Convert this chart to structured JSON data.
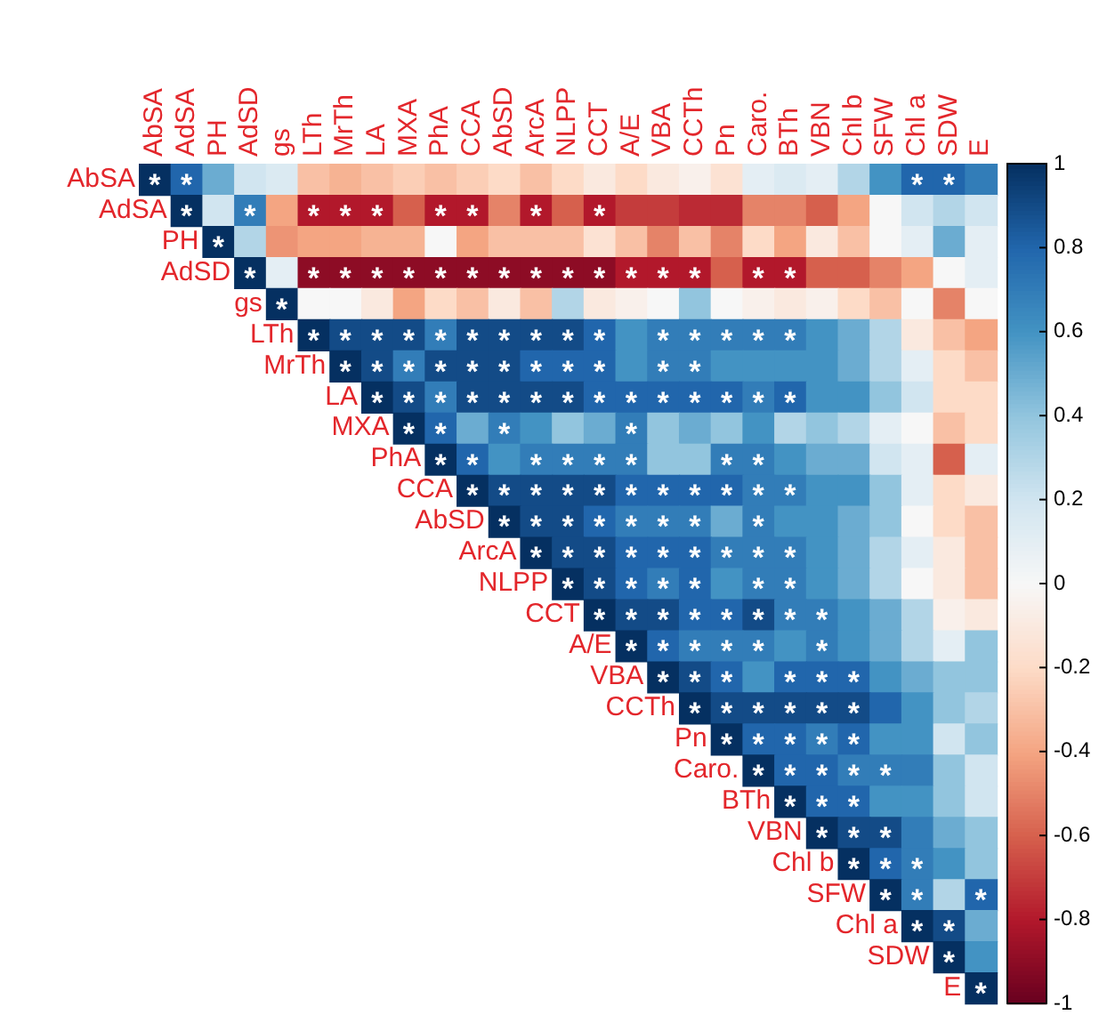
{
  "chart_data": {
    "type": "heatmap",
    "categories": [
      "AbSA",
      "AdSA",
      "PH",
      "AdSD",
      "gs",
      "LTh",
      "MrTh",
      "LA",
      "MXA",
      "PhA",
      "CCA",
      "AbSD",
      "ArcA",
      "NLPP",
      "CCT",
      "A/E",
      "VBA",
      "CCTh",
      "Pn",
      "Caro.",
      "BTh",
      "VBN",
      "Chl b",
      "SFW",
      "Chl a",
      "SDW",
      "E"
    ],
    "y_categories": [
      "AbSA",
      "AdSA",
      "PH",
      "AdSD",
      "gs",
      "LTh",
      "MrTh",
      "LA",
      "MXA",
      "PhA",
      "CCA",
      "AbSD",
      "ArcA",
      "NLPP",
      "CCT",
      "A/E",
      "VBA",
      "CCTh",
      "Pn",
      "Caro.",
      "BTh",
      "VBN",
      "Chl b",
      "SFW",
      "Chl a",
      "SDW",
      "E"
    ],
    "cells": [
      [
        1,
        0.8,
        0.5,
        0.2,
        0.15,
        -0.3,
        -0.35,
        -0.3,
        -0.25,
        -0.3,
        -0.25,
        -0.2,
        -0.3,
        -0.2,
        -0.1,
        -0.2,
        -0.1,
        -0.05,
        -0.15,
        0.1,
        0.15,
        0.1,
        0.3,
        0.6,
        0.8,
        0.8,
        0.7
      ],
      [
        null,
        1,
        0.2,
        0.7,
        -0.4,
        -0.8,
        -0.8,
        -0.8,
        -0.6,
        -0.8,
        -0.8,
        -0.5,
        -0.8,
        -0.6,
        -0.8,
        -0.7,
        -0.7,
        -0.75,
        -0.75,
        -0.5,
        -0.5,
        -0.6,
        -0.4,
        0,
        0.2,
        0.3,
        0.2
      ],
      [
        null,
        null,
        1,
        0.3,
        -0.45,
        -0.4,
        -0.4,
        -0.35,
        -0.35,
        0,
        -0.4,
        -0.3,
        -0.3,
        -0.3,
        -0.15,
        -0.3,
        -0.5,
        -0.3,
        -0.5,
        -0.2,
        -0.4,
        -0.1,
        -0.3,
        0,
        0.1,
        0.5,
        0.1
      ],
      [
        null,
        null,
        null,
        1,
        0.1,
        -0.9,
        -0.9,
        -0.9,
        -0.9,
        -0.9,
        -0.9,
        -0.9,
        -0.9,
        -0.9,
        -0.9,
        -0.8,
        -0.8,
        -0.8,
        -0.6,
        -0.8,
        -0.8,
        -0.6,
        -0.6,
        -0.5,
        -0.4,
        0,
        0.1
      ],
      [
        null,
        null,
        null,
        null,
        1,
        0,
        0,
        -0.1,
        -0.4,
        -0.2,
        -0.3,
        -0.1,
        -0.3,
        0.3,
        -0.1,
        -0.05,
        0,
        0.4,
        0,
        -0.05,
        -0.1,
        -0.05,
        -0.2,
        -0.3,
        0,
        -0.5,
        0
      ],
      [
        null,
        null,
        null,
        null,
        null,
        1,
        0.9,
        0.9,
        0.9,
        0.7,
        0.9,
        0.9,
        0.9,
        0.9,
        0.8,
        0.6,
        0.7,
        0.7,
        0.7,
        0.7,
        0.7,
        0.6,
        0.5,
        0.3,
        -0.1,
        -0.3,
        -0.4
      ],
      [
        null,
        null,
        null,
        null,
        null,
        null,
        1,
        0.9,
        0.7,
        0.9,
        0.9,
        0.9,
        0.8,
        0.8,
        0.8,
        0.6,
        0.7,
        0.7,
        0.6,
        0.6,
        0.6,
        0.6,
        0.5,
        0.3,
        0.1,
        -0.2,
        -0.3
      ],
      [
        null,
        null,
        null,
        null,
        null,
        null,
        null,
        1,
        0.9,
        0.7,
        0.9,
        0.9,
        0.9,
        0.9,
        0.8,
        0.8,
        0.8,
        0.8,
        0.8,
        0.7,
        0.8,
        0.6,
        0.6,
        0.4,
        0.2,
        -0.2,
        -0.2
      ],
      [
        null,
        null,
        null,
        null,
        null,
        null,
        null,
        null,
        1,
        0.8,
        0.5,
        0.7,
        0.6,
        0.4,
        0.5,
        0.7,
        0.4,
        0.5,
        0.4,
        0.6,
        0.3,
        0.4,
        0.3,
        0.1,
        0,
        -0.3,
        -0.2
      ],
      [
        null,
        null,
        null,
        null,
        null,
        null,
        null,
        null,
        null,
        1,
        0.8,
        0.6,
        0.7,
        0.7,
        0.7,
        0.7,
        0.4,
        0.4,
        0.7,
        0.7,
        0.6,
        0.5,
        0.5,
        0.2,
        0.1,
        -0.6,
        0.1
      ],
      [
        null,
        null,
        null,
        null,
        null,
        null,
        null,
        null,
        null,
        null,
        1,
        0.9,
        0.9,
        0.9,
        0.9,
        0.8,
        0.8,
        0.8,
        0.8,
        0.7,
        0.7,
        0.6,
        0.6,
        0.4,
        0.1,
        -0.2,
        -0.1
      ],
      [
        null,
        null,
        null,
        null,
        null,
        null,
        null,
        null,
        null,
        null,
        null,
        1,
        0.9,
        0.9,
        0.8,
        0.7,
        0.7,
        0.7,
        0.5,
        0.7,
        0.6,
        0.6,
        0.5,
        0.4,
        0,
        -0.2,
        -0.3
      ],
      [
        null,
        null,
        null,
        null,
        null,
        null,
        null,
        null,
        null,
        null,
        null,
        null,
        1,
        0.9,
        0.9,
        0.8,
        0.8,
        0.8,
        0.7,
        0.7,
        0.7,
        0.6,
        0.5,
        0.3,
        0.1,
        -0.1,
        -0.3
      ],
      [
        null,
        null,
        null,
        null,
        null,
        null,
        null,
        null,
        null,
        null,
        null,
        null,
        null,
        1,
        0.9,
        0.8,
        0.7,
        0.8,
        0.6,
        0.7,
        0.7,
        0.6,
        0.5,
        0.3,
        0,
        -0.1,
        -0.3
      ],
      [
        null,
        null,
        null,
        null,
        null,
        null,
        null,
        null,
        null,
        null,
        null,
        null,
        null,
        null,
        1,
        0.9,
        0.9,
        0.8,
        0.8,
        0.9,
        0.7,
        0.7,
        0.6,
        0.5,
        0.3,
        -0.05,
        -0.1
      ],
      [
        null,
        null,
        null,
        null,
        null,
        null,
        null,
        null,
        null,
        null,
        null,
        null,
        null,
        null,
        null,
        1,
        0.8,
        0.7,
        0.7,
        0.7,
        0.6,
        0.7,
        0.6,
        0.5,
        0.3,
        0.1,
        0.4
      ],
      [
        null,
        null,
        null,
        null,
        null,
        null,
        null,
        null,
        null,
        null,
        null,
        null,
        null,
        null,
        null,
        null,
        1,
        0.9,
        0.8,
        0.6,
        0.8,
        0.8,
        0.8,
        0.6,
        0.5,
        0.4,
        0.4
      ],
      [
        null,
        null,
        null,
        null,
        null,
        null,
        null,
        null,
        null,
        null,
        null,
        null,
        null,
        null,
        null,
        null,
        null,
        1,
        0.9,
        0.9,
        0.9,
        0.9,
        0.9,
        0.8,
        0.6,
        0.4,
        0.3
      ],
      [
        null,
        null,
        null,
        null,
        null,
        null,
        null,
        null,
        null,
        null,
        null,
        null,
        null,
        null,
        null,
        null,
        null,
        null,
        1,
        0.8,
        0.8,
        0.7,
        0.8,
        0.6,
        0.6,
        0.2,
        0.4
      ],
      [
        null,
        null,
        null,
        null,
        null,
        null,
        null,
        null,
        null,
        null,
        null,
        null,
        null,
        null,
        null,
        null,
        null,
        null,
        null,
        1,
        0.8,
        0.8,
        0.7,
        0.7,
        0.7,
        0.4,
        0.2
      ],
      [
        null,
        null,
        null,
        null,
        null,
        null,
        null,
        null,
        null,
        null,
        null,
        null,
        null,
        null,
        null,
        null,
        null,
        null,
        null,
        null,
        1,
        0.8,
        0.8,
        0.6,
        0.6,
        0.4,
        0.2
      ],
      [
        null,
        null,
        null,
        null,
        null,
        null,
        null,
        null,
        null,
        null,
        null,
        null,
        null,
        null,
        null,
        null,
        null,
        null,
        null,
        null,
        null,
        1,
        0.9,
        0.9,
        0.7,
        0.5,
        0.4
      ],
      [
        null,
        null,
        null,
        null,
        null,
        null,
        null,
        null,
        null,
        null,
        null,
        null,
        null,
        null,
        null,
        null,
        null,
        null,
        null,
        null,
        null,
        null,
        1,
        0.8,
        0.7,
        0.6,
        0.4
      ],
      [
        null,
        null,
        null,
        null,
        null,
        null,
        null,
        null,
        null,
        null,
        null,
        null,
        null,
        null,
        null,
        null,
        null,
        null,
        null,
        null,
        null,
        null,
        null,
        1,
        0.7,
        0.3,
        0.8
      ],
      [
        null,
        null,
        null,
        null,
        null,
        null,
        null,
        null,
        null,
        null,
        null,
        null,
        null,
        null,
        null,
        null,
        null,
        null,
        null,
        null,
        null,
        null,
        null,
        null,
        1,
        0.9,
        0.5
      ],
      [
        null,
        null,
        null,
        null,
        null,
        null,
        null,
        null,
        null,
        null,
        null,
        null,
        null,
        null,
        null,
        null,
        null,
        null,
        null,
        null,
        null,
        null,
        null,
        null,
        null,
        1,
        0.6
      ],
      [
        null,
        null,
        null,
        null,
        null,
        null,
        null,
        null,
        null,
        null,
        null,
        null,
        null,
        null,
        null,
        null,
        null,
        null,
        null,
        null,
        null,
        null,
        null,
        null,
        null,
        null,
        1
      ]
    ],
    "cell_labels": [
      [
        "*",
        "*",
        null,
        null,
        null,
        null,
        null,
        null,
        null,
        null,
        null,
        null,
        null,
        null,
        null,
        null,
        null,
        null,
        null,
        null,
        null,
        null,
        null,
        null,
        "*",
        "*",
        null
      ],
      [
        null,
        "*",
        null,
        "*",
        null,
        "*",
        "*",
        "*",
        null,
        "*",
        "*",
        null,
        "*",
        null,
        "*",
        null,
        null,
        null,
        null,
        null,
        null,
        null,
        null,
        null,
        null,
        null,
        null
      ],
      [
        null,
        null,
        "*",
        null,
        null,
        null,
        null,
        null,
        null,
        null,
        null,
        null,
        null,
        null,
        null,
        null,
        null,
        null,
        null,
        null,
        null,
        null,
        null,
        null,
        null,
        null,
        null
      ],
      [
        null,
        null,
        null,
        "*",
        null,
        "*",
        "*",
        "*",
        "*",
        "*",
        "*",
        "*",
        "*",
        "*",
        "*",
        "*",
        "*",
        "*",
        null,
        "*",
        "*",
        null,
        null,
        null,
        null,
        null,
        null
      ],
      [
        null,
        null,
        null,
        null,
        "*",
        null,
        null,
        null,
        null,
        null,
        null,
        null,
        null,
        null,
        null,
        null,
        null,
        null,
        null,
        null,
        null,
        null,
        null,
        null,
        null,
        null,
        null
      ],
      [
        null,
        null,
        null,
        null,
        null,
        "*",
        "*",
        "*",
        "*",
        "*",
        "*",
        "*",
        "*",
        "*",
        "*",
        null,
        "*",
        "*",
        "*",
        "*",
        "*",
        null,
        null,
        null,
        null,
        null,
        null
      ],
      [
        null,
        null,
        null,
        null,
        null,
        null,
        "*",
        "*",
        "*",
        "*",
        "*",
        "*",
        "*",
        "*",
        "*",
        null,
        "*",
        "*",
        null,
        null,
        null,
        null,
        null,
        null,
        null,
        null,
        null
      ],
      [
        null,
        null,
        null,
        null,
        null,
        null,
        null,
        "*",
        "*",
        "*",
        "*",
        "*",
        "*",
        "*",
        "*",
        "*",
        "*",
        "*",
        "*",
        "*",
        "*",
        null,
        null,
        null,
        null,
        null,
        null
      ],
      [
        null,
        null,
        null,
        null,
        null,
        null,
        null,
        null,
        "*",
        "*",
        null,
        "*",
        null,
        null,
        null,
        "*",
        null,
        null,
        null,
        null,
        null,
        null,
        null,
        null,
        null,
        null,
        null
      ],
      [
        null,
        null,
        null,
        null,
        null,
        null,
        null,
        null,
        null,
        "*",
        "*",
        null,
        "*",
        "*",
        "*",
        "*",
        null,
        null,
        "*",
        "*",
        null,
        null,
        null,
        null,
        null,
        null,
        null
      ],
      [
        null,
        null,
        null,
        null,
        null,
        null,
        null,
        null,
        null,
        null,
        "*",
        "*",
        "*",
        "*",
        "*",
        "*",
        "*",
        "*",
        "*",
        "*",
        "*",
        null,
        null,
        null,
        null,
        null,
        null
      ],
      [
        null,
        null,
        null,
        null,
        null,
        null,
        null,
        null,
        null,
        null,
        null,
        "*",
        "*",
        "*",
        "*",
        "*",
        "*",
        "*",
        null,
        "*",
        null,
        null,
        null,
        null,
        null,
        null,
        null
      ],
      [
        null,
        null,
        null,
        null,
        null,
        null,
        null,
        null,
        null,
        null,
        null,
        null,
        "*",
        "*",
        "*",
        "*",
        "*",
        "*",
        "*",
        "*",
        "*",
        null,
        null,
        null,
        null,
        null,
        null
      ],
      [
        null,
        null,
        null,
        null,
        null,
        null,
        null,
        null,
        null,
        null,
        null,
        null,
        null,
        "*",
        "*",
        "*",
        "*",
        "*",
        null,
        "*",
        "*",
        null,
        null,
        null,
        null,
        null,
        null
      ],
      [
        null,
        null,
        null,
        null,
        null,
        null,
        null,
        null,
        null,
        null,
        null,
        null,
        null,
        null,
        "*",
        "*",
        "*",
        "*",
        "*",
        "*",
        "*",
        "*",
        null,
        null,
        null,
        null,
        null
      ],
      [
        null,
        null,
        null,
        null,
        null,
        null,
        null,
        null,
        null,
        null,
        null,
        null,
        null,
        null,
        null,
        "*",
        "*",
        "*",
        "*",
        "*",
        null,
        "*",
        null,
        null,
        null,
        null,
        null
      ],
      [
        null,
        null,
        null,
        null,
        null,
        null,
        null,
        null,
        null,
        null,
        null,
        null,
        null,
        null,
        null,
        null,
        "*",
        "*",
        "*",
        null,
        "*",
        "*",
        "*",
        null,
        null,
        null,
        null
      ],
      [
        null,
        null,
        null,
        null,
        null,
        null,
        null,
        null,
        null,
        null,
        null,
        null,
        null,
        null,
        null,
        null,
        null,
        "*",
        "*",
        "*",
        "*",
        "*",
        "*",
        null,
        null,
        null,
        null
      ],
      [
        null,
        null,
        null,
        null,
        null,
        null,
        null,
        null,
        null,
        null,
        null,
        null,
        null,
        null,
        null,
        null,
        null,
        null,
        "*",
        "*",
        "*",
        "*",
        "*",
        null,
        null,
        null,
        null
      ],
      [
        null,
        null,
        null,
        null,
        null,
        null,
        null,
        null,
        null,
        null,
        null,
        null,
        null,
        null,
        null,
        null,
        null,
        null,
        null,
        "*",
        "*",
        "*",
        "*",
        "*",
        null,
        null,
        null
      ],
      [
        null,
        null,
        null,
        null,
        null,
        null,
        null,
        null,
        null,
        null,
        null,
        null,
        null,
        null,
        null,
        null,
        null,
        null,
        null,
        null,
        "*",
        "*",
        "*",
        null,
        null,
        null,
        null
      ],
      [
        null,
        null,
        null,
        null,
        null,
        null,
        null,
        null,
        null,
        null,
        null,
        null,
        null,
        null,
        null,
        null,
        null,
        null,
        null,
        null,
        null,
        "*",
        "*",
        "*",
        null,
        null,
        null
      ],
      [
        null,
        null,
        null,
        null,
        null,
        null,
        null,
        null,
        null,
        null,
        null,
        null,
        null,
        null,
        null,
        null,
        null,
        null,
        null,
        null,
        null,
        null,
        "*",
        "*",
        "*",
        null,
        null
      ],
      [
        null,
        null,
        null,
        null,
        null,
        null,
        null,
        null,
        null,
        null,
        null,
        null,
        null,
        null,
        null,
        null,
        null,
        null,
        null,
        null,
        null,
        null,
        null,
        "*",
        "*",
        null,
        "*"
      ],
      [
        null,
        null,
        null,
        null,
        null,
        null,
        null,
        null,
        null,
        null,
        null,
        null,
        null,
        null,
        null,
        null,
        null,
        null,
        null,
        null,
        null,
        null,
        null,
        null,
        "*",
        "*",
        null
      ],
      [
        null,
        null,
        null,
        null,
        null,
        null,
        null,
        null,
        null,
        null,
        null,
        null,
        null,
        null,
        null,
        null,
        null,
        null,
        null,
        null,
        null,
        null,
        null,
        null,
        null,
        "*",
        null
      ],
      [
        null,
        null,
        null,
        null,
        null,
        null,
        null,
        null,
        null,
        null,
        null,
        null,
        null,
        null,
        null,
        null,
        null,
        null,
        null,
        null,
        null,
        null,
        null,
        null,
        null,
        null,
        "*"
      ]
    ],
    "clim": [
      -1,
      1
    ],
    "cticks": [
      -1,
      -0.8,
      -0.6,
      -0.4,
      -0.2,
      0,
      0.2,
      0.4,
      0.6,
      0.8,
      1
    ]
  }
}
